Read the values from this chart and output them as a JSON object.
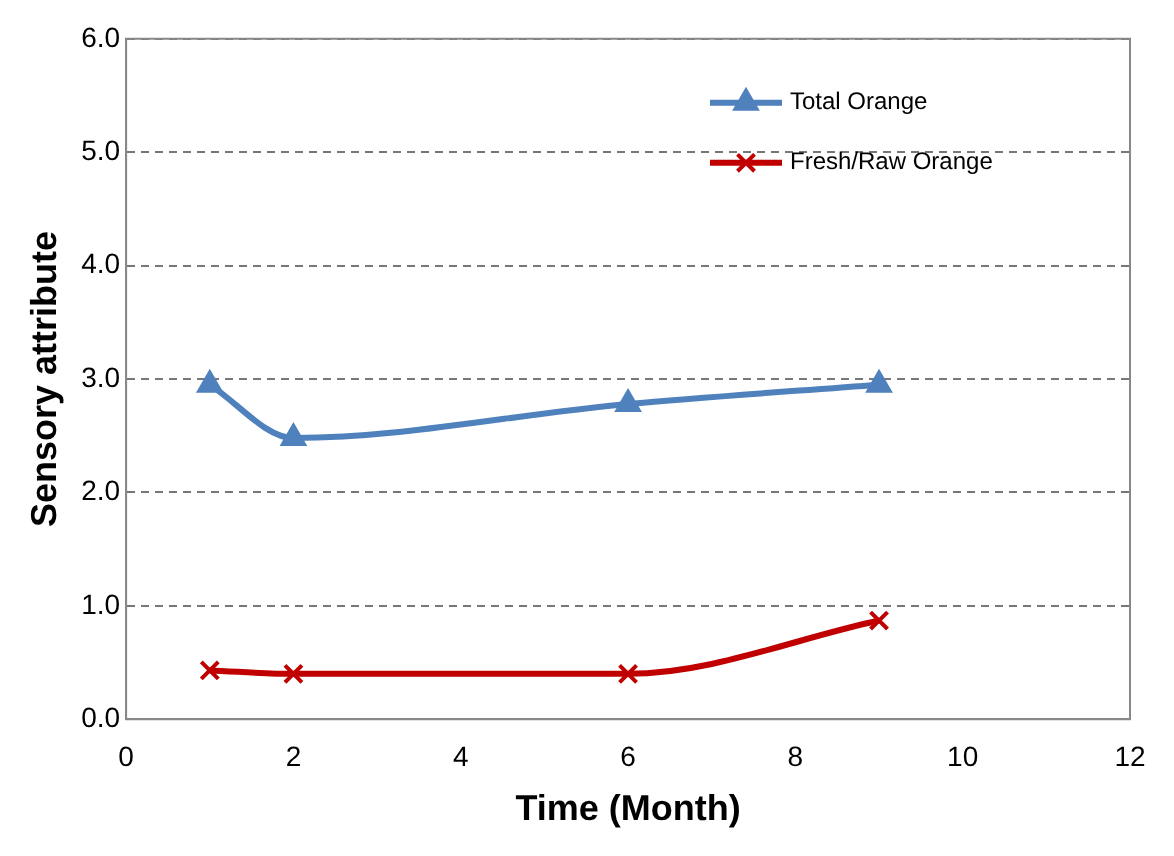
{
  "chart_data": {
    "type": "line",
    "xlabel": "Time (Month)",
    "ylabel": "Sensory attribute",
    "series": [
      {
        "name": "Total Orange",
        "color": "#4f81bd",
        "marker": "triangle",
        "x": [
          1,
          2,
          6,
          9
        ],
        "values": [
          2.95,
          2.48,
          2.78,
          2.95
        ]
      },
      {
        "name": "Fresh/Raw Orange",
        "color": "#c00000",
        "marker": "cross",
        "x": [
          1,
          2,
          6,
          9
        ],
        "values": [
          0.43,
          0.4,
          0.4,
          0.87
        ]
      }
    ],
    "xlim": [
      0,
      12
    ],
    "xticks": [
      0,
      2,
      4,
      6,
      8,
      10,
      12
    ],
    "ylim": [
      0,
      6
    ],
    "yticks": [
      {
        "value": 0,
        "label": "0.0"
      },
      {
        "value": 1,
        "label": "1.0"
      },
      {
        "value": 2,
        "label": "2.0"
      },
      {
        "value": 3,
        "label": "3.0"
      },
      {
        "value": 4,
        "label": "4.0"
      },
      {
        "value": 5,
        "label": "5.0"
      },
      {
        "value": 6,
        "label": "6.0"
      }
    ],
    "grid": "y",
    "legend": "top right",
    "line_style": "solid"
  }
}
